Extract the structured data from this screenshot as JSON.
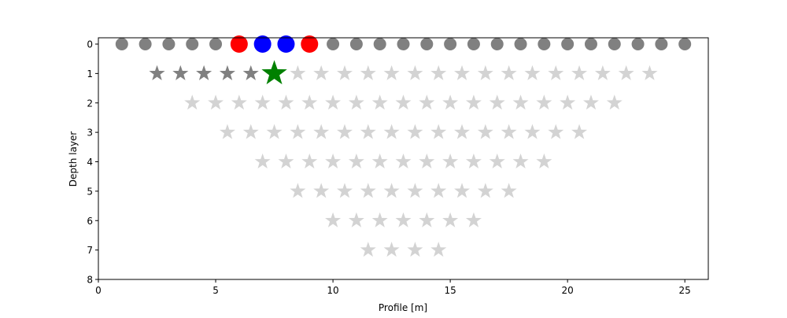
{
  "chart_data": {
    "type": "scatter",
    "title": "",
    "xlabel": "Profile [m]",
    "ylabel": "Depth layer",
    "xlim": [
      0,
      26
    ],
    "ylim": [
      8,
      0
    ],
    "y_inverted": true,
    "grid": false,
    "legend": "none",
    "x_ticks": [
      0,
      5,
      10,
      15,
      20,
      25
    ],
    "y_ticks": [
      0,
      1,
      2,
      3,
      4,
      5,
      6,
      7,
      8
    ],
    "electrodes": {
      "y": 0,
      "x": [
        1,
        2,
        3,
        4,
        5,
        6,
        7,
        8,
        9,
        10,
        11,
        12,
        13,
        14,
        15,
        16,
        17,
        18,
        19,
        20,
        21,
        22,
        23,
        24,
        25
      ],
      "default_color": "#808080",
      "current_x": [
        6,
        9
      ],
      "current_color": "#ff0000",
      "potential_x": [
        7,
        8
      ],
      "potential_color": "#0000ff"
    },
    "datum_points": {
      "color": "#d3d3d3",
      "layers": [
        {
          "depth": 1,
          "x": [
            2.5,
            3.5,
            4.5,
            5.5,
            6.5,
            7.5,
            8.5,
            9.5,
            10.5,
            11.5,
            12.5,
            13.5,
            14.5,
            15.5,
            16.5,
            17.5,
            18.5,
            19.5,
            20.5,
            21.5,
            22.5,
            23.5
          ]
        },
        {
          "depth": 2,
          "x": [
            4,
            5,
            6,
            7,
            8,
            9,
            10,
            11,
            12,
            13,
            14,
            15,
            16,
            17,
            18,
            19,
            20,
            21,
            22
          ]
        },
        {
          "depth": 3,
          "x": [
            5.5,
            6.5,
            7.5,
            8.5,
            9.5,
            10.5,
            11.5,
            12.5,
            13.5,
            14.5,
            15.5,
            16.5,
            17.5,
            18.5,
            19.5,
            20.5
          ]
        },
        {
          "depth": 4,
          "x": [
            7,
            8,
            9,
            10,
            11,
            12,
            13,
            14,
            15,
            16,
            17,
            18,
            19
          ]
        },
        {
          "depth": 5,
          "x": [
            8.5,
            9.5,
            10.5,
            11.5,
            12.5,
            13.5,
            14.5,
            15.5,
            16.5,
            17.5
          ]
        },
        {
          "depth": 6,
          "x": [
            10,
            11,
            12,
            13,
            14,
            15,
            16
          ]
        },
        {
          "depth": 7,
          "x": [
            11.5,
            12.5,
            13.5,
            14.5
          ]
        }
      ]
    },
    "measured_points": {
      "depth": 1,
      "x": [
        2.5,
        3.5,
        4.5,
        5.5,
        6.5
      ],
      "color": "#808080"
    },
    "current_point": {
      "depth": 1,
      "x": 7.5,
      "color": "#008000"
    }
  }
}
